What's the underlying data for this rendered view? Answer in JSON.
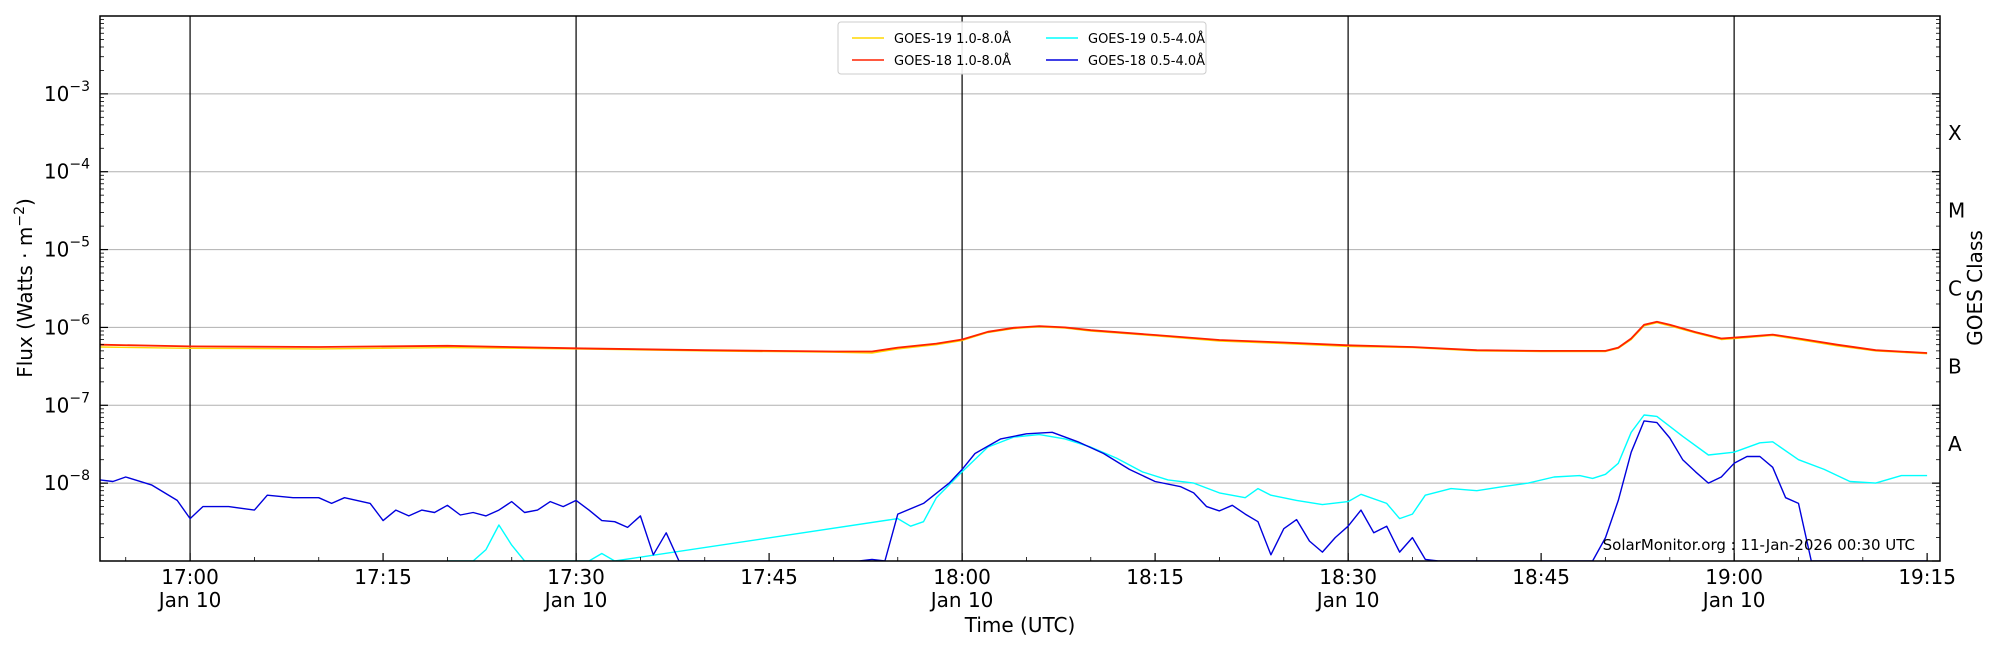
{
  "chart_data": {
    "type": "line",
    "title": "",
    "xlabel": "Time (UTC)",
    "ylabel": "Flux (Watts · m",
    "ylabel_sup": "−2",
    "ylabel_close": ")",
    "right_label": "GOES Class",
    "yscale": "log",
    "ylim": [
      1e-09,
      0.01
    ],
    "xlim": [
      "16:53",
      "19:16"
    ],
    "grid": "horizontal",
    "legend_placement": "top-center",
    "watermark": "SolarMonitor.org : 11-Jan-2026 00:30 UTC",
    "y_ticks": [
      {
        "value": 1e-08,
        "base": "10",
        "exp": "−8"
      },
      {
        "value": 1e-07,
        "base": "10",
        "exp": "−7"
      },
      {
        "value": 1e-06,
        "base": "10",
        "exp": "−6"
      },
      {
        "value": 1e-05,
        "base": "10",
        "exp": "−5"
      },
      {
        "value": 0.0001,
        "base": "10",
        "exp": "−4"
      },
      {
        "value": 0.001,
        "base": "10",
        "exp": "−3"
      }
    ],
    "x_ticks": [
      {
        "time": "17:00",
        "label": "17:00",
        "sub": "Jan 10"
      },
      {
        "time": "17:15",
        "label": "17:15",
        "sub": ""
      },
      {
        "time": "17:30",
        "label": "17:30",
        "sub": "Jan 10"
      },
      {
        "time": "17:45",
        "label": "17:45",
        "sub": ""
      },
      {
        "time": "18:00",
        "label": "18:00",
        "sub": "Jan 10"
      },
      {
        "time": "18:15",
        "label": "18:15",
        "sub": ""
      },
      {
        "time": "18:30",
        "label": "18:30",
        "sub": "Jan 10"
      },
      {
        "time": "18:45",
        "label": "18:45",
        "sub": ""
      },
      {
        "time": "19:00",
        "label": "19:00",
        "sub": "Jan 10"
      },
      {
        "time": "19:15",
        "label": "19:15",
        "sub": ""
      }
    ],
    "vlines": [
      "17:00",
      "17:30",
      "18:00",
      "18:30",
      "19:00"
    ],
    "goes_classes": [
      {
        "label": "A",
        "value": 3.16e-08
      },
      {
        "label": "B",
        "value": 3.16e-07
      },
      {
        "label": "C",
        "value": 3.16e-06
      },
      {
        "label": "M",
        "value": 3.16e-05
      },
      {
        "label": "X",
        "value": 0.000316
      }
    ],
    "series": [
      {
        "name": "GOES-19 1.0-8.0Å",
        "color": "#FFD700",
        "points": [
          [
            "16:53",
            5.6e-07
          ],
          [
            "17:00",
            5.4e-07
          ],
          [
            "17:10",
            5.3e-07
          ],
          [
            "17:20",
            5.5e-07
          ],
          [
            "17:30",
            5.3e-07
          ],
          [
            "17:40",
            5e-07
          ],
          [
            "17:50",
            4.8e-07
          ],
          [
            "17:53",
            4.7e-07
          ],
          [
            "17:55",
            5.3e-07
          ],
          [
            "17:58",
            6e-07
          ],
          [
            "18:00",
            6.8e-07
          ],
          [
            "18:02",
            8.6e-07
          ],
          [
            "18:04",
            9.7e-07
          ],
          [
            "18:06",
            1.02e-06
          ],
          [
            "18:08",
            9.8e-07
          ],
          [
            "18:10",
            9e-07
          ],
          [
            "18:15",
            7.8e-07
          ],
          [
            "18:20",
            6.7e-07
          ],
          [
            "18:25",
            6.2e-07
          ],
          [
            "18:30",
            5.7e-07
          ],
          [
            "18:35",
            5.5e-07
          ],
          [
            "18:40",
            5e-07
          ],
          [
            "18:45",
            4.9e-07
          ],
          [
            "18:50",
            4.9e-07
          ],
          [
            "18:51",
            5.4e-07
          ],
          [
            "18:52",
            7e-07
          ],
          [
            "18:53",
            1.05e-06
          ],
          [
            "18:54",
            1.15e-06
          ],
          [
            "18:55",
            1.05e-06
          ],
          [
            "18:57",
            8.5e-07
          ],
          [
            "18:59",
            7e-07
          ],
          [
            "19:01",
            7.4e-07
          ],
          [
            "19:03",
            7.9e-07
          ],
          [
            "19:05",
            7e-07
          ],
          [
            "19:08",
            5.8e-07
          ],
          [
            "19:11",
            5e-07
          ],
          [
            "19:15",
            4.6e-07
          ]
        ]
      },
      {
        "name": "GOES-18 1.0-8.0Å",
        "color": "#FF2200",
        "points": [
          [
            "16:53",
            6e-07
          ],
          [
            "17:00",
            5.7e-07
          ],
          [
            "17:10",
            5.6e-07
          ],
          [
            "17:20",
            5.8e-07
          ],
          [
            "17:30",
            5.4e-07
          ],
          [
            "17:40",
            5.1e-07
          ],
          [
            "17:50",
            4.9e-07
          ],
          [
            "17:53",
            4.9e-07
          ],
          [
            "17:55",
            5.5e-07
          ],
          [
            "17:58",
            6.2e-07
          ],
          [
            "18:00",
            7e-07
          ],
          [
            "18:02",
            8.8e-07
          ],
          [
            "18:04",
            9.9e-07
          ],
          [
            "18:06",
            1.04e-06
          ],
          [
            "18:08",
            1e-06
          ],
          [
            "18:10",
            9.2e-07
          ],
          [
            "18:15",
            8e-07
          ],
          [
            "18:20",
            6.9e-07
          ],
          [
            "18:25",
            6.4e-07
          ],
          [
            "18:30",
            5.9e-07
          ],
          [
            "18:35",
            5.6e-07
          ],
          [
            "18:40",
            5.1e-07
          ],
          [
            "18:45",
            5e-07
          ],
          [
            "18:50",
            5e-07
          ],
          [
            "18:51",
            5.5e-07
          ],
          [
            "18:52",
            7.2e-07
          ],
          [
            "18:53",
            1.08e-06
          ],
          [
            "18:54",
            1.18e-06
          ],
          [
            "18:55",
            1.08e-06
          ],
          [
            "18:57",
            8.7e-07
          ],
          [
            "18:59",
            7.2e-07
          ],
          [
            "19:01",
            7.6e-07
          ],
          [
            "19:03",
            8.1e-07
          ],
          [
            "19:05",
            7.2e-07
          ],
          [
            "19:08",
            6e-07
          ],
          [
            "19:11",
            5.1e-07
          ],
          [
            "19:15",
            4.7e-07
          ]
        ]
      },
      {
        "name": "GOES-19 0.5-4.0Å",
        "color": "#00FFFF",
        "points": [
          [
            "17:20",
            1e-09
          ],
          [
            "17:22",
            1e-09
          ],
          [
            "17:23",
            1.4e-09
          ],
          [
            "17:24",
            2.9e-09
          ],
          [
            "17:25",
            1.6e-09
          ],
          [
            "17:26",
            1e-09
          ],
          [
            "17:30",
            1e-09
          ],
          [
            "17:31",
            1e-09
          ],
          [
            "17:32",
            1.25e-09
          ],
          [
            "17:33",
            1e-09
          ],
          [
            "17:55",
            3.5e-09
          ],
          [
            "17:56",
            2.8e-09
          ],
          [
            "17:57",
            3.2e-09
          ],
          [
            "17:58",
            6.5e-09
          ],
          [
            "18:00",
            1.4e-08
          ],
          [
            "18:02",
            2.9e-08
          ],
          [
            "18:04",
            3.9e-08
          ],
          [
            "18:06",
            4.2e-08
          ],
          [
            "18:08",
            3.7e-08
          ],
          [
            "18:10",
            2.9e-08
          ],
          [
            "18:12",
            2.1e-08
          ],
          [
            "18:14",
            1.4e-08
          ],
          [
            "18:16",
            1.1e-08
          ],
          [
            "18:18",
            1e-08
          ],
          [
            "18:20",
            7.5e-09
          ],
          [
            "18:22",
            6.5e-09
          ],
          [
            "18:23",
            8.5e-09
          ],
          [
            "18:24",
            7e-09
          ],
          [
            "18:26",
            6e-09
          ],
          [
            "18:28",
            5.3e-09
          ],
          [
            "18:30",
            5.8e-09
          ],
          [
            "18:31",
            7.2e-09
          ],
          [
            "18:33",
            5.5e-09
          ],
          [
            "18:34",
            3.5e-09
          ],
          [
            "18:35",
            4e-09
          ],
          [
            "18:36",
            7e-09
          ],
          [
            "18:38",
            8.5e-09
          ],
          [
            "18:40",
            8e-09
          ],
          [
            "18:42",
            9e-09
          ],
          [
            "18:44",
            1e-08
          ],
          [
            "18:46",
            1.2e-08
          ],
          [
            "18:48",
            1.25e-08
          ],
          [
            "18:49",
            1.15e-08
          ],
          [
            "18:50",
            1.3e-08
          ],
          [
            "18:51",
            1.8e-08
          ],
          [
            "18:52",
            4.5e-08
          ],
          [
            "18:53",
            7.5e-08
          ],
          [
            "18:54",
            7.2e-08
          ],
          [
            "18:56",
            4e-08
          ],
          [
            "18:58",
            2.3e-08
          ],
          [
            "19:00",
            2.5e-08
          ],
          [
            "19:02",
            3.3e-08
          ],
          [
            "19:03",
            3.4e-08
          ],
          [
            "19:05",
            2e-08
          ],
          [
            "19:07",
            1.5e-08
          ],
          [
            "19:09",
            1.05e-08
          ],
          [
            "19:11",
            1e-08
          ],
          [
            "19:13",
            1.25e-08
          ],
          [
            "19:15",
            1.25e-08
          ]
        ]
      },
      {
        "name": "GOES-18 0.5-4.0Å",
        "color": "#0000DD",
        "points": [
          [
            "16:53",
            1.1e-08
          ],
          [
            "16:54",
            1.05e-08
          ],
          [
            "16:55",
            1.2e-08
          ],
          [
            "16:57",
            9.5e-09
          ],
          [
            "16:59",
            6e-09
          ],
          [
            "17:00",
            3.5e-09
          ],
          [
            "17:01",
            5e-09
          ],
          [
            "17:03",
            5e-09
          ],
          [
            "17:05",
            4.5e-09
          ],
          [
            "17:06",
            7e-09
          ],
          [
            "17:08",
            6.5e-09
          ],
          [
            "17:10",
            6.5e-09
          ],
          [
            "17:11",
            5.5e-09
          ],
          [
            "17:12",
            6.5e-09
          ],
          [
            "17:14",
            5.5e-09
          ],
          [
            "17:15",
            3.3e-09
          ],
          [
            "17:16",
            4.5e-09
          ],
          [
            "17:17",
            3.8e-09
          ],
          [
            "17:18",
            4.5e-09
          ],
          [
            "17:19",
            4.2e-09
          ],
          [
            "17:20",
            5.2e-09
          ],
          [
            "17:21",
            3.9e-09
          ],
          [
            "17:22",
            4.2e-09
          ],
          [
            "17:23",
            3.8e-09
          ],
          [
            "17:24",
            4.5e-09
          ],
          [
            "17:25",
            5.8e-09
          ],
          [
            "17:26",
            4.2e-09
          ],
          [
            "17:27",
            4.5e-09
          ],
          [
            "17:28",
            5.8e-09
          ],
          [
            "17:29",
            5e-09
          ],
          [
            "17:30",
            6e-09
          ],
          [
            "17:31",
            4.5e-09
          ],
          [
            "17:32",
            3.3e-09
          ],
          [
            "17:33",
            3.2e-09
          ],
          [
            "17:34",
            2.7e-09
          ],
          [
            "17:35",
            3.8e-09
          ],
          [
            "17:36",
            1.2e-09
          ],
          [
            "17:37",
            2.3e-09
          ],
          [
            "17:38",
            1e-09
          ],
          [
            "17:52",
            1e-09
          ],
          [
            "17:53",
            1.05e-09
          ],
          [
            "17:54",
            1e-09
          ],
          [
            "17:55",
            4e-09
          ],
          [
            "17:57",
            5.5e-09
          ],
          [
            "17:59",
            1e-08
          ],
          [
            "18:00",
            1.5e-08
          ],
          [
            "18:01",
            2.4e-08
          ],
          [
            "18:03",
            3.7e-08
          ],
          [
            "18:05",
            4.3e-08
          ],
          [
            "18:07",
            4.5e-08
          ],
          [
            "18:09",
            3.4e-08
          ],
          [
            "18:11",
            2.4e-08
          ],
          [
            "18:13",
            1.5e-08
          ],
          [
            "18:15",
            1.05e-08
          ],
          [
            "18:17",
            9e-09
          ],
          [
            "18:18",
            7.5e-09
          ],
          [
            "18:19",
            5e-09
          ],
          [
            "18:20",
            4.4e-09
          ],
          [
            "18:21",
            5.2e-09
          ],
          [
            "18:22",
            4e-09
          ],
          [
            "18:23",
            3.2e-09
          ],
          [
            "18:24",
            1.2e-09
          ],
          [
            "18:25",
            2.6e-09
          ],
          [
            "18:26",
            3.4e-09
          ],
          [
            "18:27",
            1.8e-09
          ],
          [
            "18:28",
            1.3e-09
          ],
          [
            "18:29",
            2e-09
          ],
          [
            "18:30",
            2.8e-09
          ],
          [
            "18:31",
            4.5e-09
          ],
          [
            "18:32",
            2.3e-09
          ],
          [
            "18:33",
            2.8e-09
          ],
          [
            "18:34",
            1.3e-09
          ],
          [
            "18:35",
            2e-09
          ],
          [
            "18:36",
            1.05e-09
          ],
          [
            "18:37",
            1e-09
          ],
          [
            "18:49",
            1e-09
          ],
          [
            "18:50",
            2e-09
          ],
          [
            "18:51",
            6e-09
          ],
          [
            "18:52",
            2.5e-08
          ],
          [
            "18:53",
            6.3e-08
          ],
          [
            "18:54",
            6e-08
          ],
          [
            "18:55",
            3.8e-08
          ],
          [
            "18:56",
            2e-08
          ],
          [
            "18:57",
            1.4e-08
          ],
          [
            "18:58",
            1e-08
          ],
          [
            "18:59",
            1.2e-08
          ],
          [
            "19:00",
            1.8e-08
          ],
          [
            "19:01",
            2.2e-08
          ],
          [
            "19:02",
            2.2e-08
          ],
          [
            "19:03",
            1.6e-08
          ],
          [
            "19:04",
            6.5e-09
          ],
          [
            "19:05",
            5.5e-09
          ],
          [
            "19:06",
            1e-09
          ],
          [
            "19:15",
            1e-09
          ]
        ]
      }
    ]
  }
}
